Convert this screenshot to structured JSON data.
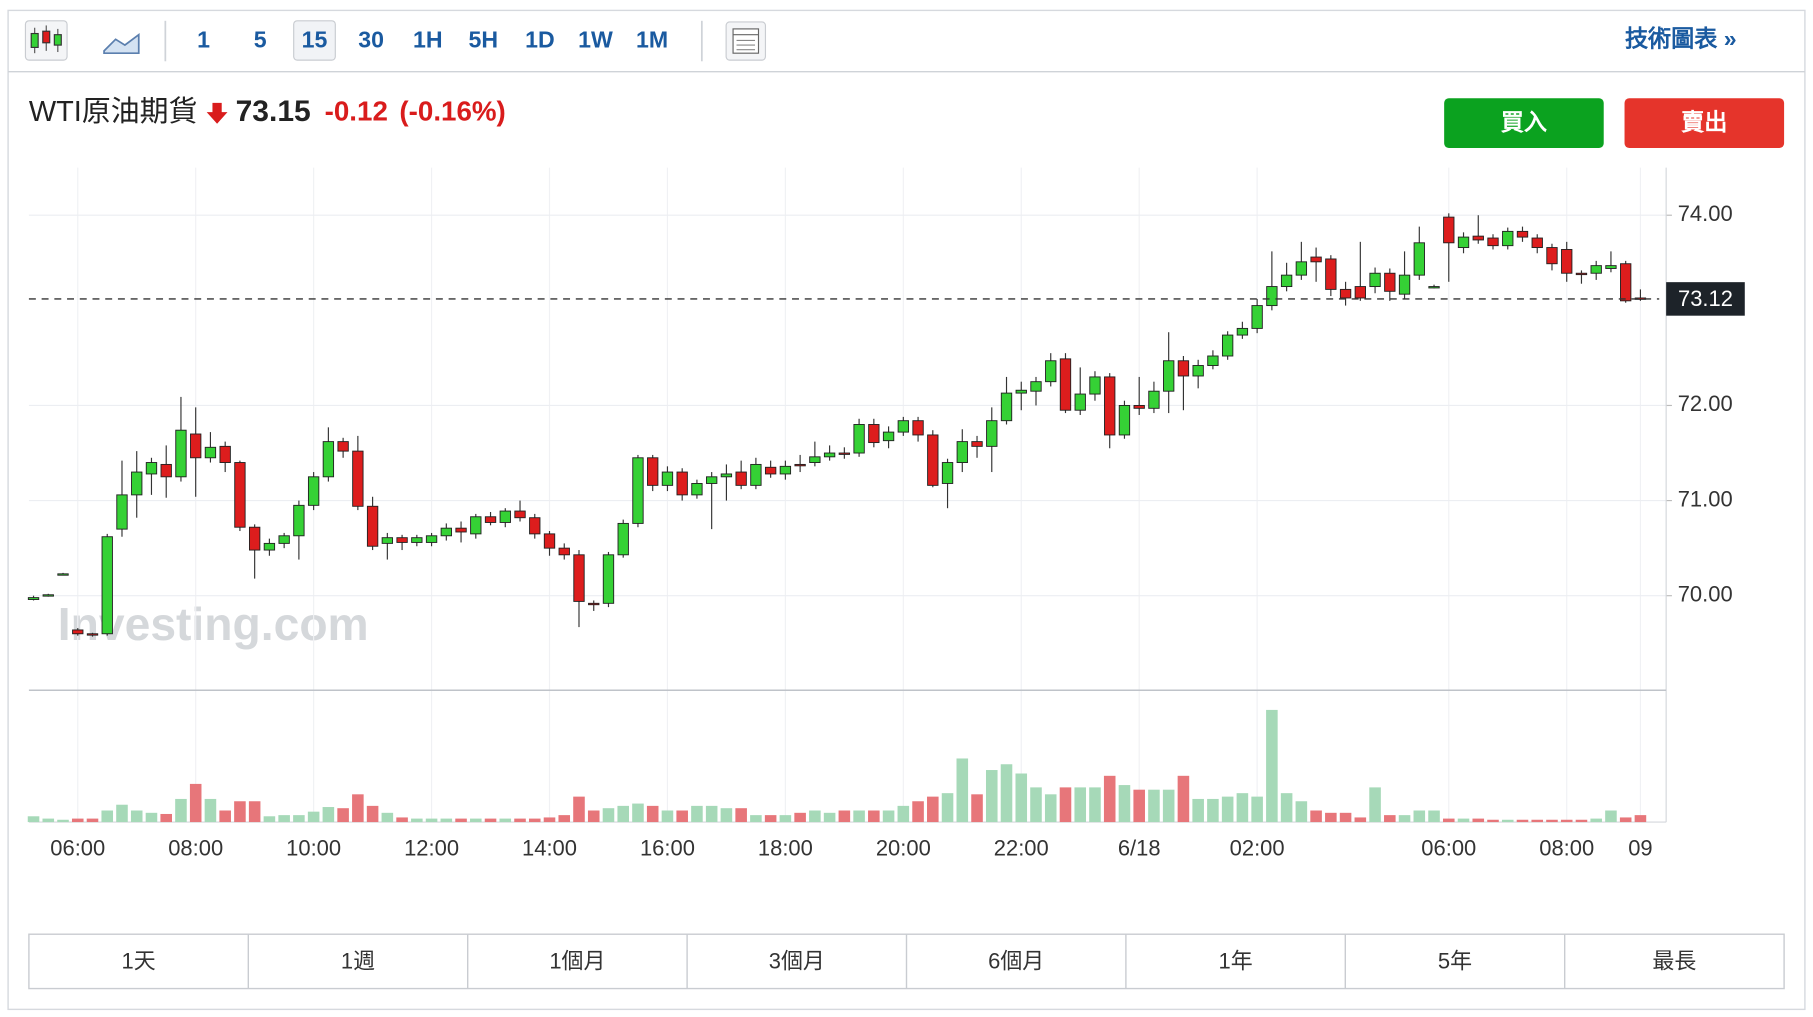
{
  "toolbar": {
    "intervals": [
      "1",
      "5",
      "15",
      "30",
      "1H",
      "5H",
      "1D",
      "1W",
      "1M"
    ],
    "selected_interval": 2,
    "link": "技術圖表 »"
  },
  "quote": {
    "name": "WTI原油期貨",
    "price": 73.15,
    "change": -0.12,
    "change_percent": "(-0.16%)"
  },
  "buttons": {
    "buy": "買入",
    "sell": "賣出"
  },
  "chart_data": {
    "type": "candlestick",
    "watermark": "Investing.com",
    "categories": [
      null,
      null,
      null,
      "06:00",
      null,
      null,
      null,
      null,
      null,
      null,
      null,
      "08:00",
      null,
      null,
      null,
      null,
      null,
      null,
      null,
      "10:00",
      null,
      null,
      null,
      null,
      null,
      null,
      null,
      "12:00",
      null,
      null,
      null,
      null,
      null,
      null,
      null,
      "14:00",
      null,
      null,
      null,
      null,
      null,
      null,
      null,
      "16:00",
      null,
      null,
      null,
      null,
      null,
      null,
      null,
      "18:00",
      null,
      null,
      null,
      null,
      null,
      null,
      null,
      "20:00",
      null,
      null,
      null,
      null,
      null,
      null,
      null,
      "22:00",
      null,
      null,
      null,
      null,
      null,
      null,
      null,
      "6/18",
      null,
      null,
      null,
      null,
      null,
      null,
      null,
      "02:00",
      null,
      null,
      null,
      null,
      null,
      null,
      null,
      null,
      null,
      null,
      null,
      null,
      "06:00",
      null,
      null,
      null,
      null,
      null,
      null,
      null,
      "08:00",
      null,
      null,
      null,
      null,
      "09"
    ],
    "open": [
      69.96,
      70.0,
      70.23,
      69.64,
      69.6,
      69.6,
      70.7,
      71.06,
      71.28,
      71.38,
      71.25,
      71.7,
      71.45,
      71.57,
      71.4,
      70.72,
      70.48,
      70.55,
      70.63,
      70.95,
      71.25,
      71.62,
      71.52,
      70.94,
      70.55,
      70.61,
      70.56,
      70.56,
      70.63,
      70.71,
      70.65,
      70.83,
      70.77,
      70.89,
      70.82,
      70.65,
      70.5,
      70.43,
      69.92,
      69.92,
      70.43,
      70.76,
      71.45,
      71.16,
      71.3,
      71.06,
      71.18,
      71.25,
      71.3,
      71.16,
      71.35,
      71.28,
      71.38,
      71.4,
      71.46,
      71.5,
      71.5,
      71.8,
      71.63,
      71.72,
      71.84,
      71.69,
      71.18,
      71.4,
      71.62,
      71.57,
      71.84,
      72.13,
      72.15,
      72.25,
      72.49,
      71.95,
      72.12,
      72.3,
      71.69,
      72.0,
      71.97,
      72.15,
      72.47,
      72.31,
      72.42,
      72.52,
      72.74,
      72.81,
      73.05,
      73.25,
      73.37,
      73.56,
      73.54,
      73.22,
      73.25,
      73.25,
      73.39,
      73.17,
      73.37,
      73.25,
      73.98,
      73.66,
      73.78,
      73.76,
      73.68,
      73.83,
      73.76,
      73.66,
      73.64,
      73.39,
      73.39,
      73.44,
      73.49,
      73.13
    ],
    "high": [
      70.0,
      70.02,
      70.24,
      69.66,
      69.61,
      70.65,
      71.42,
      71.52,
      71.45,
      71.58,
      72.09,
      71.98,
      71.72,
      71.62,
      71.42,
      70.75,
      70.6,
      70.66,
      71.0,
      71.3,
      71.77,
      71.66,
      71.68,
      71.04,
      70.66,
      70.64,
      70.64,
      70.66,
      70.76,
      70.78,
      70.86,
      70.88,
      70.92,
      71.0,
      70.86,
      70.68,
      70.55,
      70.48,
      69.95,
      70.46,
      70.8,
      71.48,
      71.48,
      71.36,
      71.34,
      71.22,
      71.3,
      71.38,
      71.42,
      71.45,
      71.42,
      71.42,
      71.48,
      71.62,
      71.58,
      71.56,
      71.86,
      71.86,
      71.78,
      71.88,
      71.88,
      71.74,
      71.44,
      71.75,
      71.68,
      71.98,
      72.3,
      72.25,
      72.3,
      72.55,
      72.55,
      72.4,
      72.36,
      72.34,
      72.05,
      72.3,
      72.25,
      72.77,
      72.52,
      72.48,
      72.58,
      72.78,
      72.88,
      73.12,
      73.62,
      73.5,
      73.72,
      73.66,
      73.58,
      73.3,
      73.72,
      73.45,
      73.44,
      73.62,
      73.88,
      73.27,
      74.02,
      73.82,
      74.0,
      73.8,
      73.87,
      73.88,
      73.8,
      73.7,
      73.72,
      73.42,
      73.52,
      73.62,
      73.52,
      73.22
    ],
    "low": [
      69.95,
      69.99,
      70.22,
      69.58,
      69.57,
      69.58,
      70.62,
      70.82,
      71.06,
      71.03,
      71.2,
      71.04,
      71.4,
      71.3,
      70.68,
      70.18,
      70.42,
      70.5,
      70.38,
      70.9,
      71.2,
      71.45,
      70.9,
      70.48,
      70.38,
      70.48,
      70.52,
      70.52,
      70.58,
      70.56,
      70.6,
      70.74,
      70.72,
      70.78,
      70.6,
      70.42,
      70.38,
      69.67,
      69.84,
      69.88,
      70.4,
      70.72,
      71.1,
      71.1,
      71.0,
      71.02,
      70.7,
      71.0,
      71.12,
      71.12,
      71.24,
      71.22,
      71.3,
      71.36,
      71.42,
      71.44,
      71.46,
      71.56,
      71.55,
      71.68,
      71.62,
      71.14,
      70.92,
      71.3,
      71.45,
      71.3,
      71.8,
      71.95,
      72.0,
      72.2,
      71.92,
      71.9,
      72.05,
      71.55,
      71.65,
      71.9,
      71.92,
      71.92,
      71.95,
      72.18,
      72.38,
      72.48,
      72.7,
      72.76,
      73.0,
      73.2,
      73.32,
      73.3,
      73.15,
      73.05,
      73.1,
      73.18,
      73.1,
      73.12,
      73.32,
      73.23,
      73.3,
      73.6,
      73.7,
      73.64,
      73.64,
      73.72,
      73.6,
      73.42,
      73.3,
      73.28,
      73.32,
      73.4,
      73.08,
      73.1
    ],
    "close": [
      69.98,
      70.01,
      70.23,
      69.6,
      69.59,
      70.62,
      71.06,
      71.3,
      71.4,
      71.25,
      71.74,
      71.45,
      71.56,
      71.4,
      70.72,
      70.48,
      70.55,
      70.63,
      70.95,
      71.25,
      71.62,
      71.52,
      70.94,
      70.52,
      70.61,
      70.56,
      70.61,
      70.63,
      70.71,
      70.67,
      70.83,
      70.77,
      70.89,
      70.82,
      70.65,
      70.5,
      70.43,
      69.94,
      69.91,
      70.43,
      70.76,
      71.45,
      71.16,
      71.3,
      71.06,
      71.18,
      71.25,
      71.28,
      71.16,
      71.38,
      71.28,
      71.36,
      71.37,
      71.46,
      71.5,
      71.49,
      71.8,
      71.61,
      71.72,
      71.84,
      71.69,
      71.16,
      71.4,
      71.62,
      71.57,
      71.84,
      72.13,
      72.16,
      72.25,
      72.47,
      71.95,
      72.12,
      72.3,
      71.69,
      72.0,
      71.97,
      72.15,
      72.47,
      72.31,
      72.42,
      72.52,
      72.74,
      72.81,
      73.05,
      73.25,
      73.37,
      73.51,
      73.51,
      73.22,
      73.13,
      73.13,
      73.39,
      73.2,
      73.37,
      73.71,
      73.25,
      73.71,
      73.77,
      73.74,
      73.68,
      73.83,
      73.77,
      73.66,
      73.49,
      73.39,
      73.38,
      73.47,
      73.47,
      73.1,
      73.12
    ],
    "volume": [
      5,
      3,
      2,
      3,
      3,
      10,
      15,
      10,
      8,
      7,
      20,
      33,
      20,
      10,
      18,
      18,
      5,
      6,
      6,
      9,
      13,
      12,
      24,
      14,
      8,
      4,
      3,
      3,
      3,
      3,
      3,
      3,
      3,
      3,
      3,
      4,
      6,
      22,
      10,
      12,
      14,
      16,
      14,
      10,
      10,
      14,
      14,
      12,
      12,
      6,
      6,
      6,
      8,
      10,
      8,
      10,
      10,
      10,
      10,
      14,
      18,
      22,
      25,
      55,
      24,
      45,
      50,
      42,
      30,
      24,
      30,
      30,
      30,
      40,
      32,
      28,
      28,
      28,
      40,
      20,
      20,
      22,
      25,
      22,
      97,
      25,
      18,
      10,
      8,
      8,
      4,
      30,
      6,
      6,
      10,
      10,
      3,
      3,
      3,
      2,
      2,
      2,
      2,
      2,
      2,
      2,
      3,
      10,
      4,
      6
    ],
    "ylim": [
      69.0,
      74.5
    ],
    "yticks": [
      {
        "value": 70,
        "label": "70.00"
      },
      {
        "value": 71,
        "label": "71.00"
      },
      {
        "value": 72,
        "label": "72.00"
      },
      {
        "value": 74,
        "label": "74.00"
      }
    ],
    "volume_lim": [
      0,
      114
    ],
    "last_price": 73.12,
    "grid": true,
    "up_color": "#35d135",
    "down_color": "#dd1d1d",
    "volume_up_color": "#a6d9b8",
    "volume_down_color": "#e7767a"
  },
  "ranges": [
    "1天",
    "1週",
    "1個月",
    "3個月",
    "6個月",
    "1年",
    "5年",
    "最長"
  ]
}
